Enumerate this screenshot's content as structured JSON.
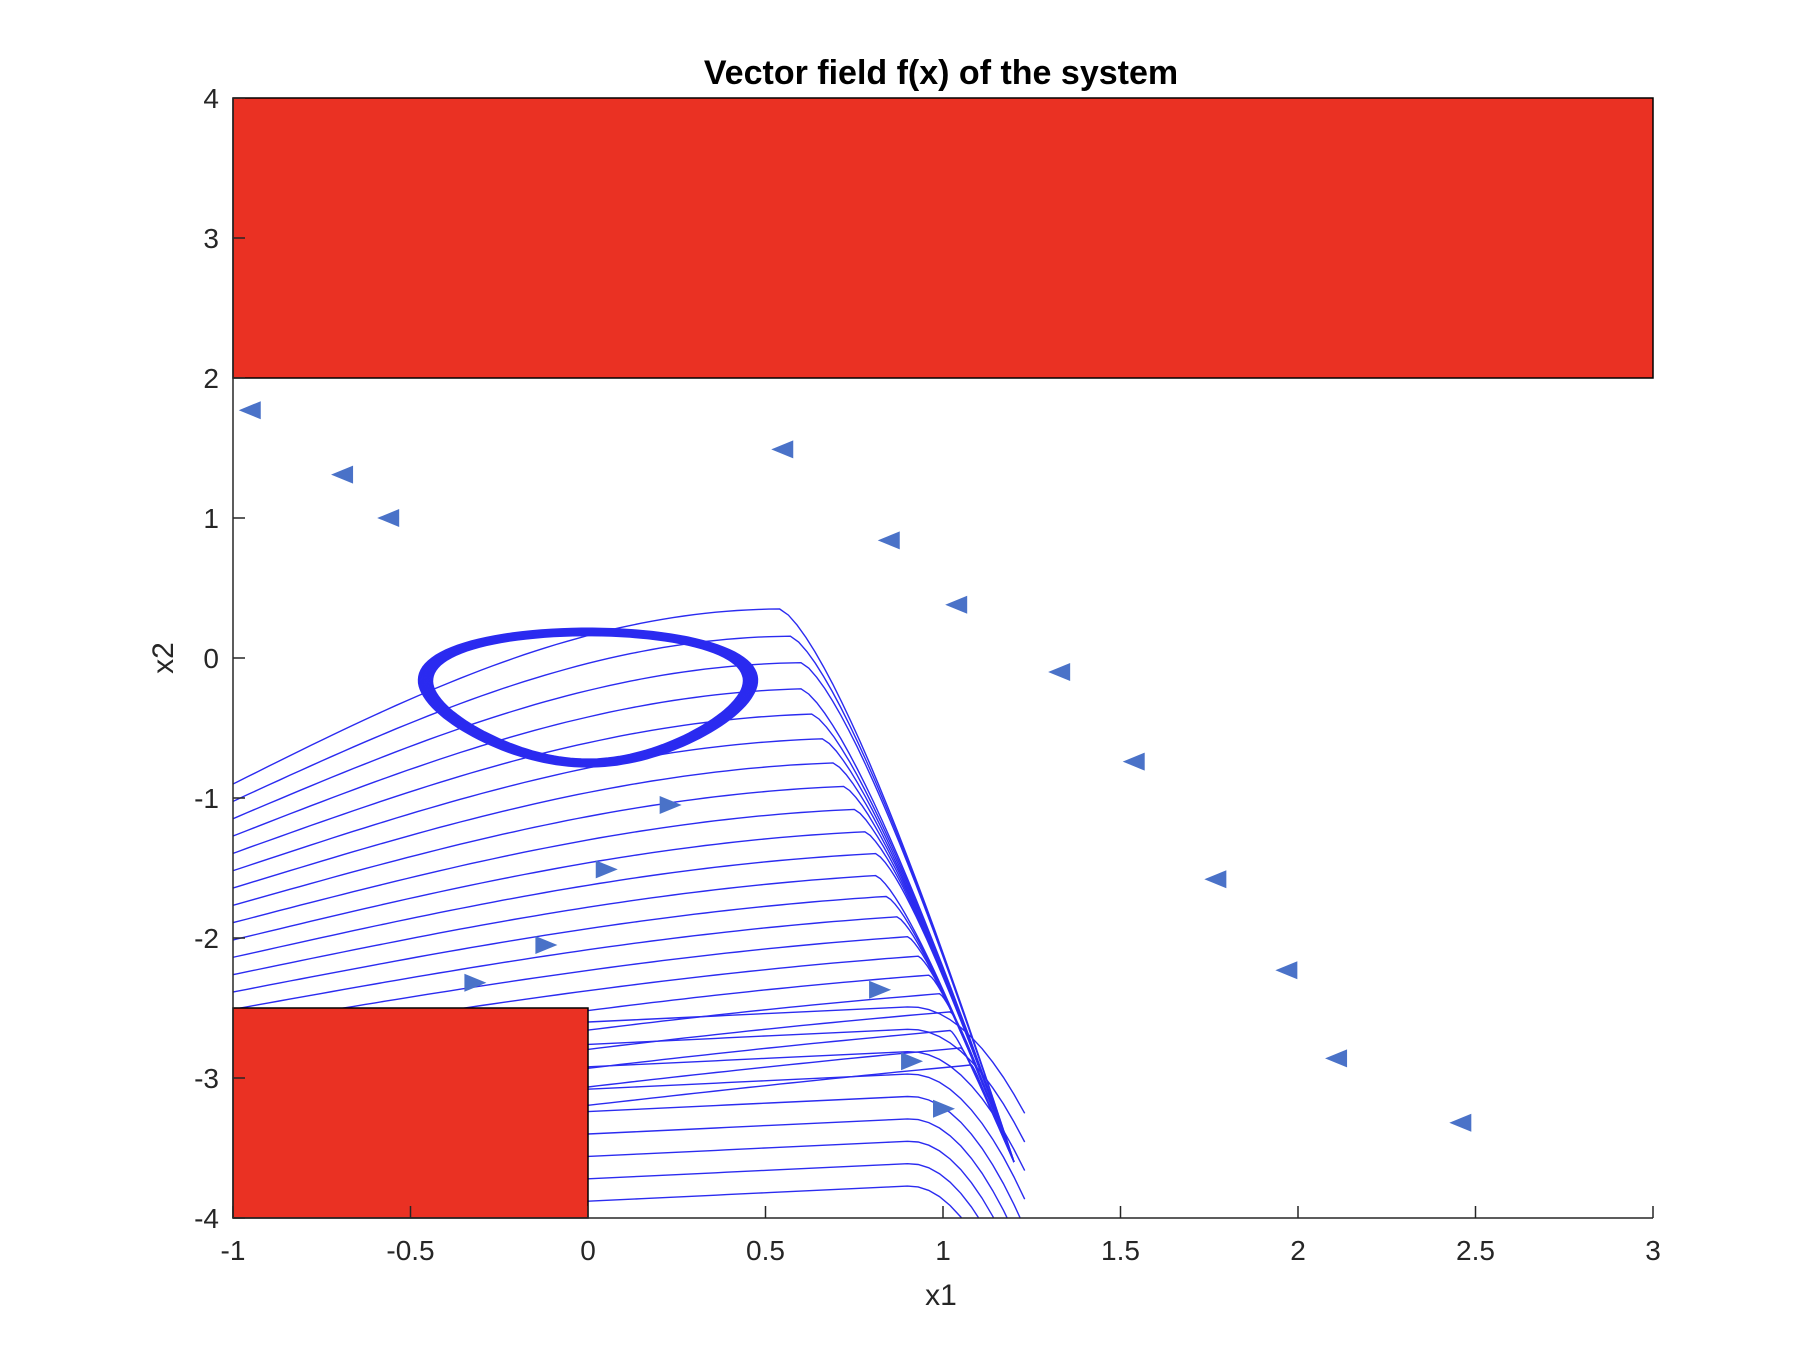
{
  "chart_data": {
    "type": "streamline",
    "title": "Vector field f(x) of the system",
    "xlabel": "x1",
    "ylabel": "x2",
    "xlim": [
      -1,
      3
    ],
    "ylim": [
      -4,
      4
    ],
    "xticks": [
      -1,
      -0.5,
      0,
      0.5,
      1,
      1.5,
      2,
      2.5,
      3
    ],
    "xtick_labels": [
      "-1",
      "-0.5",
      "0",
      "0.5",
      "1",
      "1.5",
      "2",
      "2.5",
      "3"
    ],
    "yticks": [
      -4,
      -3,
      -2,
      -1,
      0,
      1,
      2,
      3,
      4
    ],
    "ytick_labels": [
      "-4",
      "-3",
      "-2",
      "-1",
      "0",
      "1",
      "2",
      "3",
      "4"
    ],
    "streamline_color": "#2b2bf0",
    "arrow_color": "#4a72c8",
    "limit_cycle": {
      "center": [
        0.0,
        -0.27
      ],
      "x_range": [
        -0.44,
        0.48
      ],
      "y_range": [
        -0.77,
        0.24
      ]
    },
    "regions": [
      {
        "name": "upper-unsafe-region",
        "x": [
          -1,
          3
        ],
        "y": [
          2,
          4
        ],
        "color": "#ea3123"
      },
      {
        "name": "lower-unsafe-region",
        "x": [
          -1,
          0
        ],
        "y": [
          -4,
          -2.5
        ],
        "color": "#ea3123"
      }
    ],
    "arrows": [
      {
        "x": -0.95,
        "y": 1.77,
        "dir": "left"
      },
      {
        "x": -0.69,
        "y": 1.31,
        "dir": "left"
      },
      {
        "x": -0.56,
        "y": 1.0,
        "dir": "left"
      },
      {
        "x": 0.55,
        "y": 1.49,
        "dir": "left"
      },
      {
        "x": 0.85,
        "y": 0.84,
        "dir": "left"
      },
      {
        "x": 1.04,
        "y": 0.38,
        "dir": "left"
      },
      {
        "x": 1.33,
        "y": -0.1,
        "dir": "left"
      },
      {
        "x": 1.54,
        "y": -0.74,
        "dir": "left"
      },
      {
        "x": 1.77,
        "y": -1.58,
        "dir": "left"
      },
      {
        "x": 1.97,
        "y": -2.23,
        "dir": "left"
      },
      {
        "x": 2.11,
        "y": -2.86,
        "dir": "left"
      },
      {
        "x": 2.46,
        "y": -3.32,
        "dir": "left"
      },
      {
        "x": 0.23,
        "y": -1.05,
        "dir": "right"
      },
      {
        "x": 0.05,
        "y": -1.51,
        "dir": "right"
      },
      {
        "x": -0.12,
        "y": -2.05,
        "dir": "right"
      },
      {
        "x": -0.32,
        "y": -2.32,
        "dir": "right"
      },
      {
        "x": 0.82,
        "y": -2.37,
        "dir": "right"
      },
      {
        "x": 0.91,
        "y": -2.88,
        "dir": "right"
      },
      {
        "x": 1.0,
        "y": -3.22,
        "dir": "right"
      }
    ]
  }
}
